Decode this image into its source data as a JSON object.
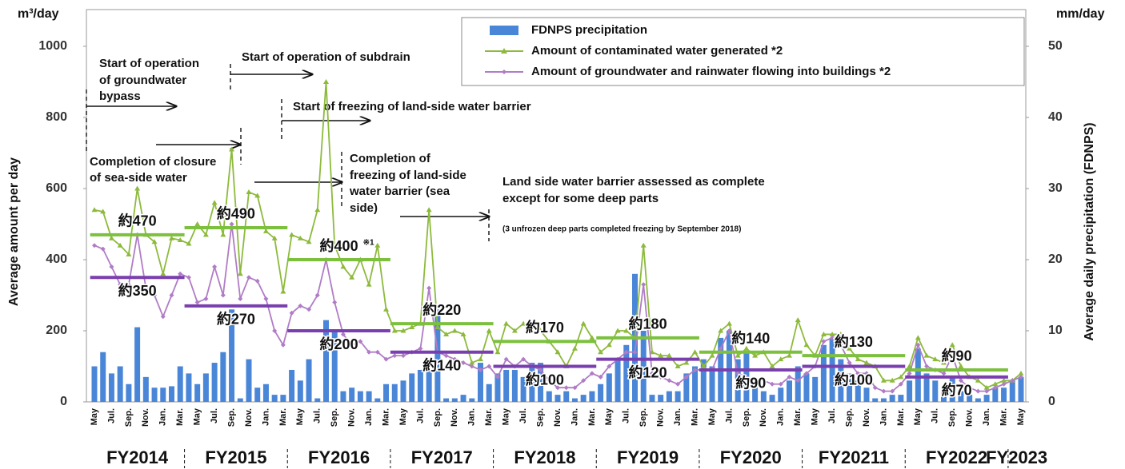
{
  "chart_data": {
    "type": "combo",
    "left_unit": "m³/day",
    "right_unit": "mm/day",
    "ylabel": "Average amount per day",
    "y2label": "Average daily precipitation (FDNPS)",
    "ylim": [
      0,
      1000
    ],
    "yticks": [
      0,
      200,
      400,
      600,
      800,
      1000
    ],
    "y2lim": [
      0,
      50
    ],
    "y2ticks": [
      0,
      10,
      20,
      30,
      40,
      50
    ],
    "categories": [
      "May",
      null,
      "Jul.",
      null,
      "Sep.",
      null,
      "Nov.",
      null,
      "Jan.",
      null,
      "Mar.",
      null,
      "May",
      null,
      "Jul.",
      null,
      "Sep.",
      null,
      "Nov.",
      null,
      "Jan.",
      null,
      "Mar.",
      null,
      "May",
      null,
      "Jul.",
      null,
      "Sep.",
      null,
      "Nov.",
      null,
      "Jan.",
      null,
      "Mar.",
      null,
      "May",
      null,
      "Jul.",
      null,
      "Sep.",
      null,
      "Nov.",
      null,
      "Jan.",
      null,
      "Mar.",
      null,
      "May",
      null,
      "Jul.",
      null,
      "Sep.",
      null,
      "Nov.",
      null,
      "Jan.",
      null,
      "Mar.",
      null,
      "May",
      null,
      "Jul.",
      null,
      "Sep.",
      null,
      "Nov.",
      null,
      "Jan.",
      null,
      "Mar.",
      null,
      "May",
      null,
      "Jul.",
      null,
      "Sep.",
      null,
      "Nov.",
      null,
      "Jan.",
      null,
      "Mar.",
      null,
      "May",
      null,
      "Jul.",
      null,
      "Sep.",
      null,
      "Nov.",
      null,
      "Jan.",
      null,
      "Mar.",
      null,
      "May",
      null,
      "Jul.",
      null,
      "Sep.",
      null,
      "Nov.",
      null,
      "Jan.",
      null,
      "Mar.",
      null,
      "May"
    ],
    "fiscal_years": [
      "FY2014",
      "FY2015",
      "FY2016",
      "FY2017",
      "FY2018",
      "FY2019",
      "FY2020",
      "FY20211",
      "FY2022",
      "FY2023"
    ],
    "series": [
      {
        "name": "FDNPS precipitation",
        "type": "bar",
        "axis": "y2",
        "color": "#4a86d8",
        "values": [
          5,
          7,
          4,
          5,
          2.5,
          10.5,
          3.5,
          2,
          2,
          2.2,
          5,
          4,
          2.5,
          4,
          5.5,
          7,
          13,
          0.5,
          6,
          2,
          2.5,
          1,
          1,
          4.5,
          3,
          6,
          0.5,
          11.5,
          10,
          1.5,
          2,
          1.5,
          1.5,
          0.5,
          2.5,
          2.5,
          3,
          4,
          4.5,
          4.5,
          13,
          0.5,
          0.5,
          1,
          0.5,
          5.5,
          2.5,
          4,
          4.5,
          4.5,
          3.5,
          5.5,
          5.5,
          1.5,
          1,
          1.5,
          0.5,
          1,
          1.5,
          2.5,
          4,
          6,
          8,
          18,
          10,
          1,
          1,
          1.5,
          1.5,
          4,
          5,
          6,
          5,
          9,
          10,
          6,
          7,
          2,
          1.5,
          1,
          2,
          3,
          5,
          4,
          3.5,
          8,
          9,
          6,
          4,
          3,
          2,
          0.5,
          0.5,
          1,
          1,
          3,
          7.5,
          4,
          3,
          2,
          3.5,
          1.5,
          1,
          0.5,
          1,
          2,
          2,
          3,
          3.5
        ]
      },
      {
        "name": "Amount of contaminated water generated *2",
        "type": "line",
        "marker": "triangle",
        "color": "#8dba3c",
        "values": [
          540,
          535,
          460,
          440,
          415,
          600,
          470,
          450,
          360,
          460,
          455,
          445,
          500,
          470,
          560,
          470,
          710,
          360,
          590,
          580,
          480,
          460,
          310,
          470,
          460,
          450,
          540,
          900,
          440,
          380,
          350,
          400,
          330,
          440,
          260,
          200,
          200,
          210,
          220,
          540,
          210,
          190,
          200,
          190,
          110,
          120,
          200,
          140,
          220,
          200,
          220,
          210,
          200,
          170,
          140,
          100,
          150,
          220,
          180,
          140,
          160,
          200,
          200,
          180,
          440,
          140,
          130,
          130,
          100,
          110,
          140,
          100,
          130,
          200,
          220,
          130,
          150,
          130,
          140,
          100,
          120,
          130,
          230,
          160,
          130,
          190,
          190,
          190,
          150,
          120,
          110,
          100,
          60,
          60,
          70,
          100,
          180,
          130,
          120,
          110,
          160,
          100,
          70,
          60,
          40,
          50,
          60,
          60,
          80
        ]
      },
      {
        "name": "Amount of groundwater and rainwater flowing into buildings *2",
        "type": "line",
        "marker": "diamond",
        "color": "#b07cc6",
        "values": [
          440,
          430,
          380,
          330,
          330,
          470,
          320,
          300,
          240,
          300,
          360,
          350,
          280,
          290,
          380,
          300,
          500,
          290,
          350,
          340,
          290,
          200,
          160,
          250,
          270,
          260,
          300,
          400,
          280,
          190,
          160,
          170,
          140,
          140,
          120,
          130,
          130,
          140,
          150,
          320,
          140,
          130,
          120,
          110,
          100,
          90,
          100,
          70,
          120,
          100,
          120,
          100,
          90,
          60,
          40,
          40,
          40,
          60,
          80,
          70,
          100,
          120,
          140,
          140,
          330,
          80,
          70,
          60,
          50,
          70,
          90,
          90,
          90,
          150,
          200,
          80,
          70,
          60,
          60,
          50,
          50,
          70,
          60,
          80,
          100,
          170,
          180,
          160,
          110,
          80,
          80,
          40,
          30,
          30,
          50,
          80,
          160,
          100,
          90,
          80,
          130,
          60,
          40,
          30,
          30,
          40,
          50,
          60,
          70
        ]
      }
    ],
    "averages": [
      {
        "color": "#7cc03e",
        "values": [
          470,
          490,
          400,
          220,
          170,
          180,
          140,
          130,
          90
        ],
        "value_labels": [
          "約470",
          "約490",
          "約400",
          "約220",
          "約170",
          "約180",
          "約140",
          "約130",
          "約90"
        ],
        "note": "※1"
      },
      {
        "color": "#7a3fae",
        "values": [
          350,
          270,
          200,
          140,
          100,
          120,
          90,
          100,
          70
        ],
        "value_labels": [
          "約350",
          "約270",
          "約200",
          "約140",
          "約100",
          "約120",
          "約90",
          "約100",
          "約70"
        ]
      }
    ],
    "annotations": [
      {
        "lines": [
          "Start of operation",
          "of groundwater",
          "bypass"
        ]
      },
      {
        "lines": [
          "Start of operation of subdrain"
        ]
      },
      {
        "lines": [
          "Start of freezing of land-side water barrier"
        ]
      },
      {
        "lines": [
          "Completion of closure",
          "of sea-side water"
        ]
      },
      {
        "lines": [
          "Completion of",
          "freezing of land-side",
          "water barrier (sea",
          "side)"
        ]
      },
      {
        "lines": [
          "Land side water barrier assessed as complete",
          "except for some deep parts"
        ]
      },
      {
        "lines": [
          "(3 unfrozen deep parts completed freezing by September 2018)"
        ]
      }
    ]
  }
}
